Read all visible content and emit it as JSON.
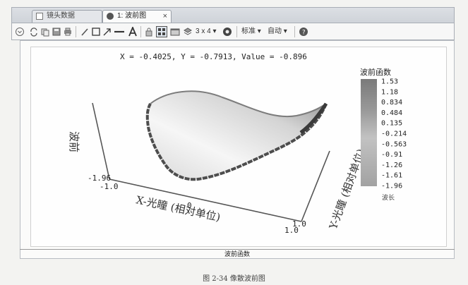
{
  "tabs": [
    {
      "label": "镜头数据",
      "icon": "document-icon"
    },
    {
      "label": "1: 波前图",
      "icon": "circle-icon",
      "close": "×"
    }
  ],
  "toolbar": {
    "layout_label": "3 x 4",
    "standard_label": "标准",
    "auto_label": "自动"
  },
  "readout": "X = -0.4025, Y = -0.7913, Value = -0.896",
  "plot": {
    "z_axis_label": "波前",
    "x_axis_label": "X-光瞳 (相对单位)",
    "y_axis_label": "Y-光瞳 (相对单位)",
    "z_min_label": "-1.96",
    "x_tick_labels": [
      "-1.0",
      "0",
      "1.0"
    ],
    "y_tick_labels": [
      "1.0"
    ]
  },
  "legend": {
    "title": "波前函数",
    "values": [
      "1.53",
      "1.18",
      "0.834",
      "0.484",
      "0.135",
      "-0.214",
      "-0.563",
      "-0.91",
      "-1.26",
      "-1.61",
      "-1.96"
    ],
    "unit": "波长",
    "color_top": "#8c8c8c",
    "color_bottom": "#bdbdbd"
  },
  "footer_label": "波前函数",
  "caption": "图 2-34  像散波前图",
  "colors": {
    "surface_light": "#f2f2f2",
    "surface_dark": "#5e5e5e",
    "axis": "#555555"
  }
}
